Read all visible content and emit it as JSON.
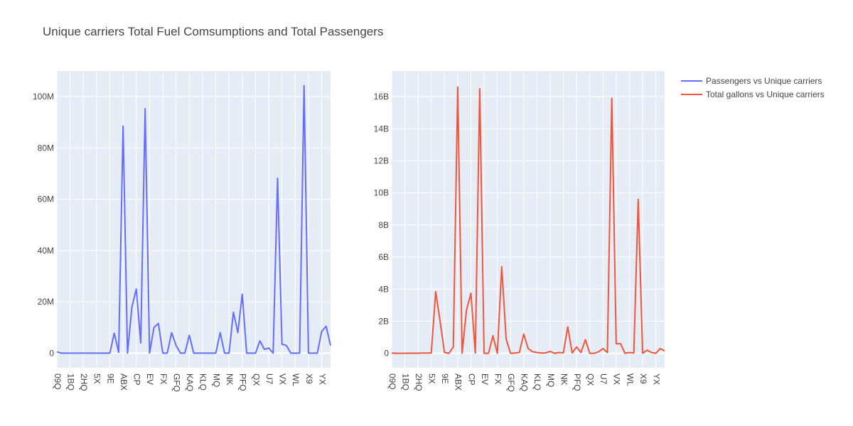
{
  "page_title": "Unique carriers Total Fuel Comsumptions and Total Passengers",
  "colors": {
    "plot_bg": "#e5ecf6",
    "grid": "#ffffff",
    "passengers_line": "#636efa",
    "gallons_line": "#ef553b",
    "text": "#444444"
  },
  "legend": {
    "placement": "top-right",
    "items": [
      "Passengers vs Unique carriers",
      "Total gallons vs Unique carriers"
    ]
  },
  "chart_data": [
    {
      "type": "line",
      "title": "",
      "xlabel": "",
      "ylabel": "",
      "series": [
        {
          "name": "Passengers vs Unique carriers",
          "values": [
            0.5,
            0,
            0,
            0,
            0,
            0,
            0,
            0,
            0,
            0,
            0,
            0,
            0,
            7.8,
            0.3,
            88.5,
            0,
            18,
            25,
            4,
            95.3,
            0,
            10,
            11.6,
            0,
            0,
            8,
            3,
            0,
            0,
            7,
            0,
            0,
            0,
            0,
            0,
            0,
            8,
            0,
            0,
            16,
            8,
            23,
            0,
            0,
            0,
            4.8,
            1.5,
            2,
            0,
            68.2,
            3.5,
            3,
            0,
            0,
            0,
            104.3,
            0,
            0,
            0,
            8.5,
            10.5,
            3
          ]
        }
      ],
      "x_tick_labels": [
        "09Q",
        "1BQ",
        "2HQ",
        "5X",
        "9E",
        "ABX",
        "CP",
        "EV",
        "FX",
        "GFQ",
        "KAQ",
        "KLQ",
        "MQ",
        "NK",
        "PFQ",
        "QX",
        "U7",
        "VX",
        "WL",
        "X9",
        "YX"
      ],
      "y_ticks": [
        0,
        20,
        40,
        60,
        80,
        100
      ],
      "y_tick_labels": [
        "0",
        "20M",
        "40M",
        "60M",
        "80M",
        "100M"
      ],
      "ylim": [
        -5.7,
        110
      ],
      "grid": true
    },
    {
      "type": "line",
      "title": "",
      "xlabel": "",
      "ylabel": "",
      "series": [
        {
          "name": "Total gallons vs Unique carriers",
          "values": [
            0.02,
            0,
            0,
            0.01,
            0.01,
            0.01,
            0.01,
            0.02,
            0.02,
            0.02,
            3.85,
            2,
            0.05,
            0,
            0.4,
            16.6,
            0,
            2.7,
            3.75,
            0.02,
            16.5,
            0,
            0,
            1.1,
            0,
            5.4,
            0.9,
            0,
            0.02,
            0.05,
            1.2,
            0.3,
            0.1,
            0.05,
            0.02,
            0.03,
            0.12,
            0,
            0.05,
            0.03,
            1.65,
            0.02,
            0.4,
            0.05,
            0.85,
            0,
            0,
            0.1,
            0.3,
            0.05,
            15.9,
            0.6,
            0.6,
            0,
            0.05,
            0.02,
            9.6,
            0,
            0.2,
            0.05,
            0,
            0.3,
            0.15
          ]
        }
      ],
      "x_tick_labels": [
        "09Q",
        "1BQ",
        "2HQ",
        "5X",
        "9E",
        "ABX",
        "CP",
        "EV",
        "FX",
        "GFQ",
        "KAQ",
        "KLQ",
        "MQ",
        "NK",
        "PFQ",
        "QX",
        "U7",
        "VX",
        "WL",
        "X9",
        "YX"
      ],
      "y_ticks": [
        0,
        2,
        4,
        6,
        8,
        10,
        12,
        14,
        16
      ],
      "y_tick_labels": [
        "0",
        "2B",
        "4B",
        "6B",
        "8B",
        "10B",
        "12B",
        "14B",
        "16B"
      ],
      "ylim": [
        -0.9,
        17.6
      ],
      "grid": true
    }
  ]
}
